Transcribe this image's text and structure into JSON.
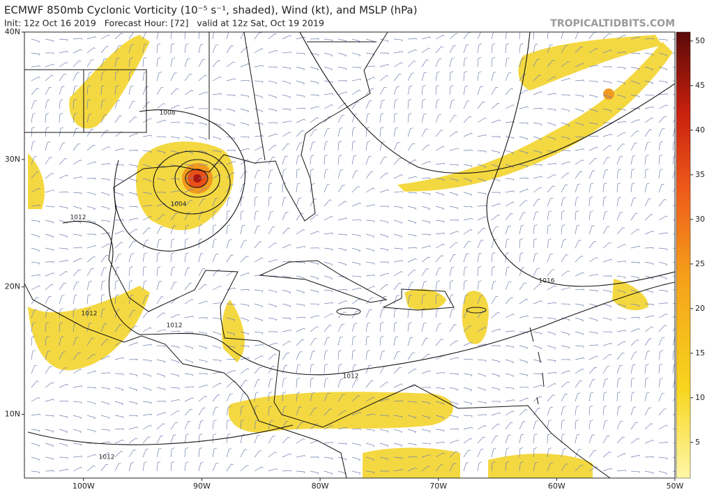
{
  "header": {
    "title": "ECMWF 850mb Cyclonic Vorticity (10⁻⁵ s⁻¹, shaded), Wind (kt), and MSLP (hPa)",
    "subtitle": "Init: 12z Oct 16 2019   Forecast Hour: [72]   valid at 12z Sat, Oct 19 2019",
    "source": "TROPICALTIDBITS.COM"
  },
  "map": {
    "lat_range": [
      5,
      40
    ],
    "lon_range": [
      -105,
      -50
    ],
    "lat_ticks": [
      {
        "value": 40,
        "label": "40N"
      },
      {
        "value": 30,
        "label": "30N"
      },
      {
        "value": 20,
        "label": "20N"
      },
      {
        "value": 10,
        "label": "10N"
      }
    ],
    "lon_ticks": [
      {
        "value": -100,
        "label": "100W"
      },
      {
        "value": -90,
        "label": "90W"
      },
      {
        "value": -80,
        "label": "80W"
      },
      {
        "value": -70,
        "label": "70W"
      },
      {
        "value": -60,
        "label": "60W"
      },
      {
        "value": -50,
        "label": "50W"
      }
    ],
    "contour_labels": [
      "1008",
      "1004",
      "1012",
      "1012",
      "1012",
      "1016",
      "1012",
      "1012"
    ]
  },
  "colorbar": {
    "range": [
      1,
      51
    ],
    "ticks": [
      5,
      10,
      15,
      20,
      25,
      30,
      35,
      40,
      45,
      50
    ]
  }
}
